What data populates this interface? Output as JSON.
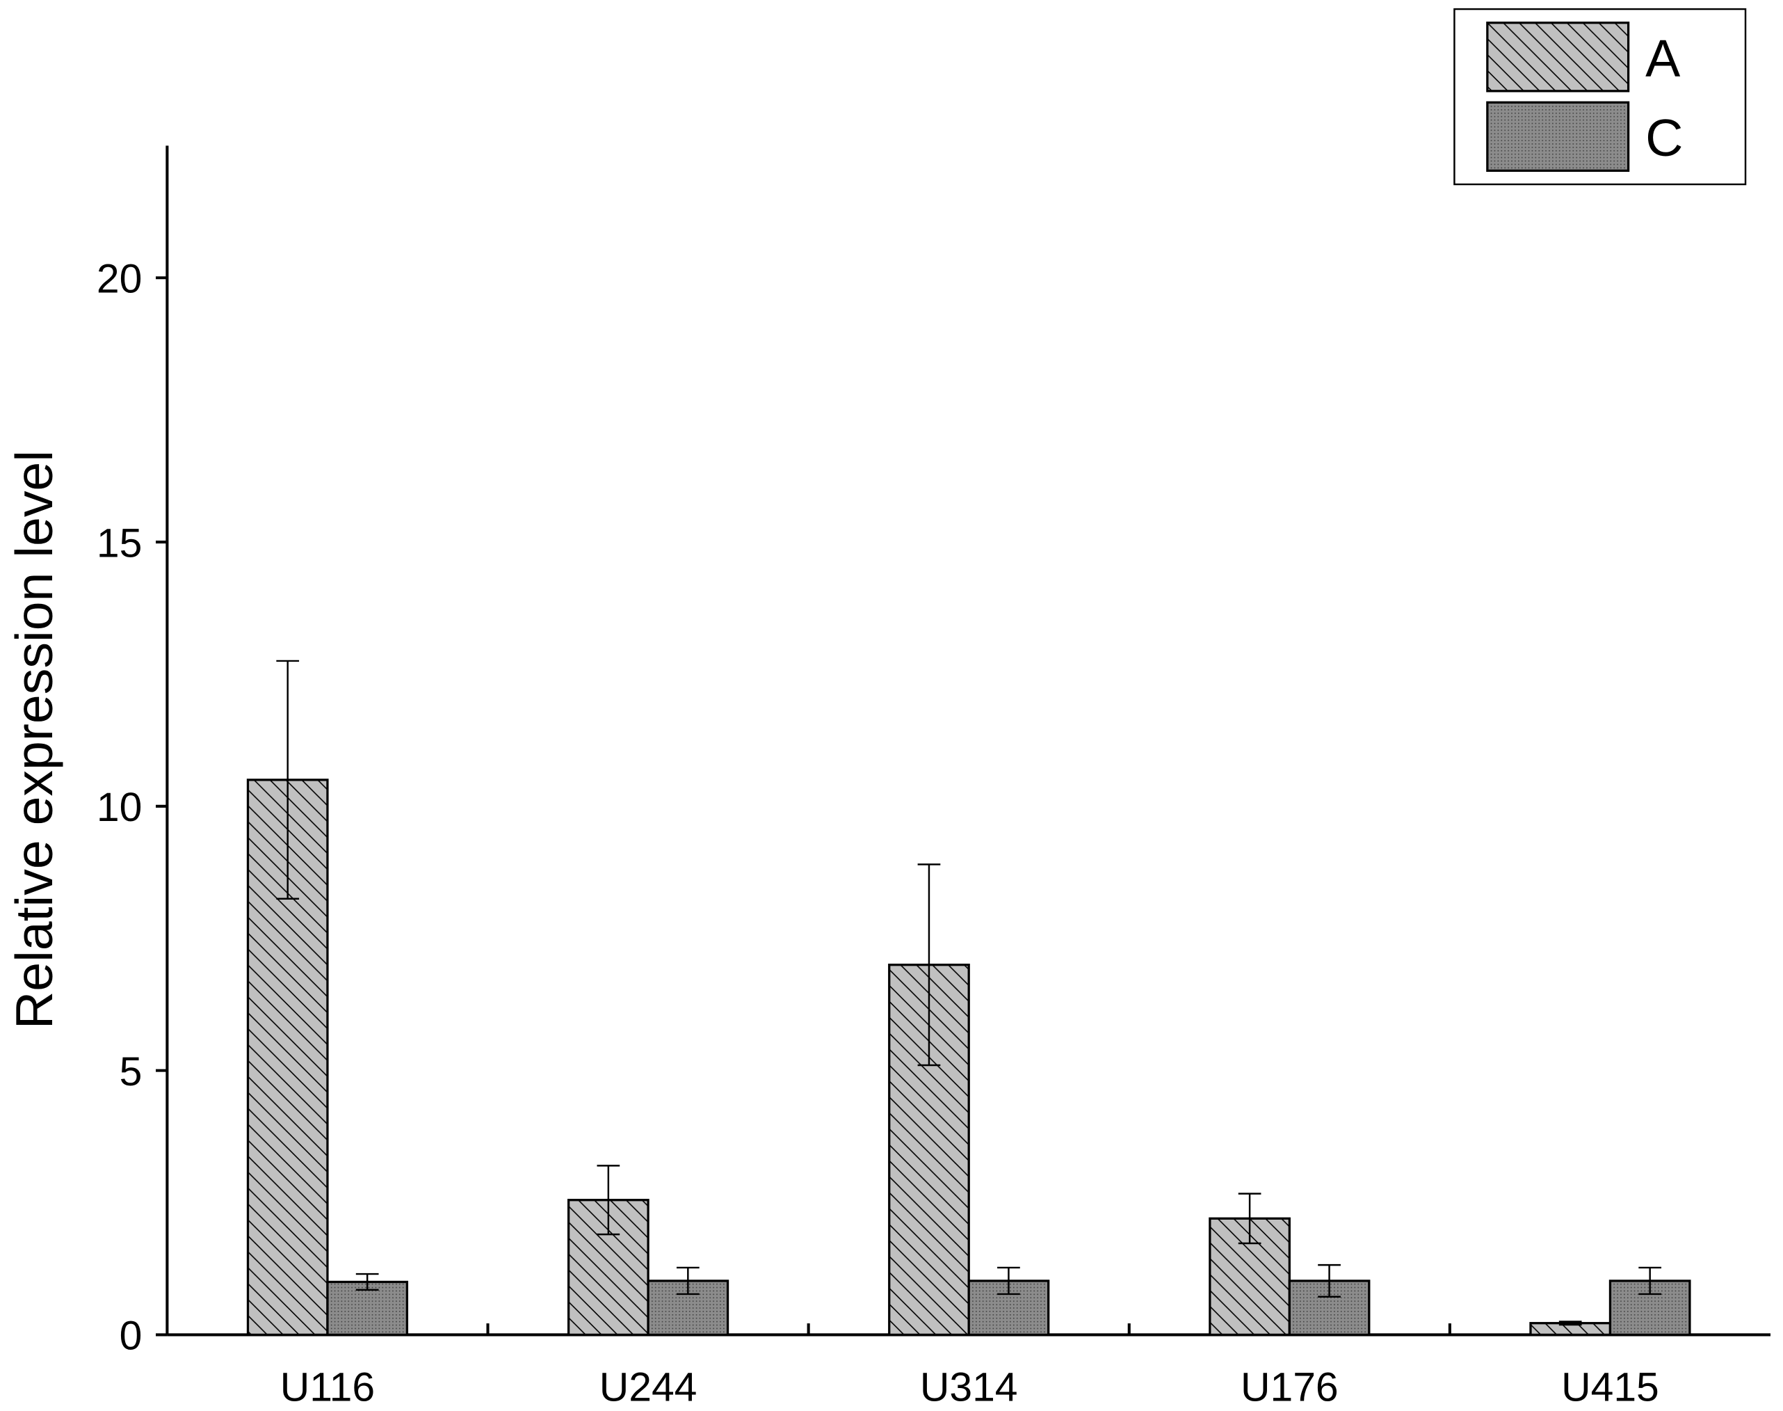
{
  "chart_data": {
    "type": "bar",
    "y_label": "Relative expression level",
    "categories": [
      "U116",
      "U244",
      "U314",
      "U176",
      "U415"
    ],
    "series": [
      {
        "name": "A",
        "color": "#c0c0c0",
        "pattern": "hatch",
        "values": [
          10.5,
          2.55,
          7.0,
          2.2,
          0.22
        ],
        "errors": [
          2.25,
          0.65,
          1.9,
          0.47,
          0.03
        ]
      },
      {
        "name": "C",
        "color": "#8c8c8c",
        "pattern": "dots",
        "values": [
          1.0,
          1.02,
          1.02,
          1.02,
          1.02
        ],
        "errors": [
          0.15,
          0.25,
          0.25,
          0.3,
          0.25
        ]
      }
    ],
    "ylim": [
      0,
      22.5
    ],
    "yticks": [
      0,
      5,
      10,
      15,
      20
    ],
    "legend": "top-right"
  }
}
